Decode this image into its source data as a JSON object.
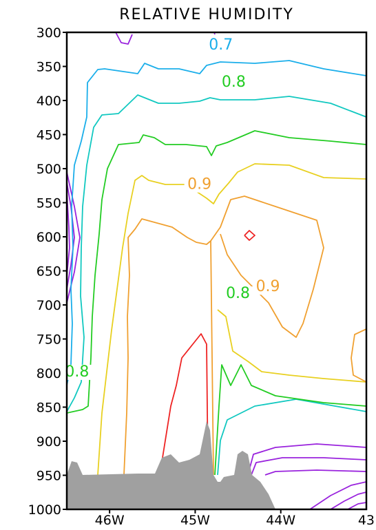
{
  "chart_data": {
    "type": "contour",
    "title": "RELATIVE HUMIDITY",
    "y_axis": {
      "ticks": [
        "300",
        "350",
        "400",
        "450",
        "500",
        "550",
        "600",
        "650",
        "700",
        "750",
        "800",
        "850",
        "900",
        "950",
        "1000"
      ],
      "range": [
        300,
        1000
      ],
      "inverted": true
    },
    "x_axis": {
      "ticks": [
        "46W",
        "45W",
        "44W",
        "43"
      ],
      "range": [
        -46.5,
        -43.0
      ]
    },
    "contour_labels": [
      {
        "text": "0.7",
        "lon": -44.7,
        "p": 325,
        "color": "#1aaeea"
      },
      {
        "text": "0.8",
        "lon": -44.55,
        "p": 380,
        "color": "#22cc22"
      },
      {
        "text": "0.9",
        "lon": -44.95,
        "p": 530,
        "color": "#f0a030"
      },
      {
        "text": "0.8",
        "lon": -44.5,
        "p": 690,
        "color": "#22cc22"
      },
      {
        "text": "0.9",
        "lon": -44.15,
        "p": 680,
        "color": "#f0a030"
      },
      {
        "text": "0.8",
        "lon": -46.38,
        "p": 805,
        "color": "#22cc22"
      }
    ],
    "colors": {
      "c095": "#ee2222",
      "c090": "#f0a030",
      "c085": "#e8d020",
      "c080": "#22cc22",
      "c075": "#10c8c0",
      "c070": "#1aaeea",
      "dry": "#9922dd",
      "terrain": "#a0a0a0"
    }
  }
}
